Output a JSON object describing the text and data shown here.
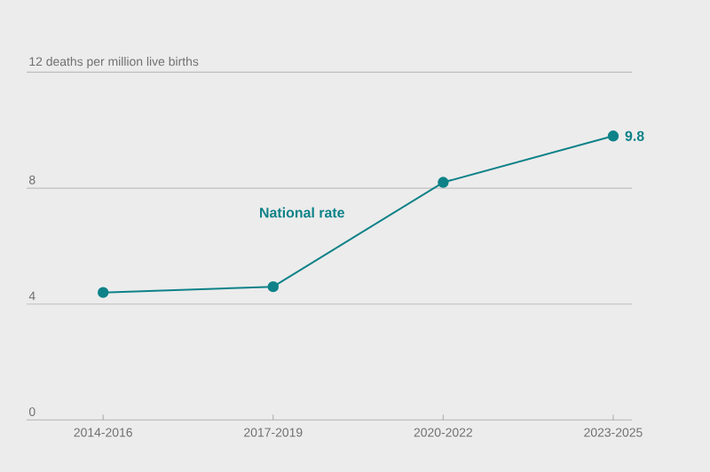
{
  "chart_data": {
    "type": "line",
    "categories": [
      "2014-2016",
      "2017-2019",
      "2020-2022",
      "2023-2025"
    ],
    "series": [
      {
        "name": "National rate",
        "color": "#0e8288",
        "values": [
          4.4,
          4.6,
          8.2,
          9.8
        ],
        "value_labels": [
          null,
          null,
          null,
          "9.8"
        ]
      }
    ],
    "ylim": [
      0,
      12
    ],
    "yticks": [
      0,
      4,
      8,
      {
        "value": 12,
        "label": "12 deaths per million live births"
      }
    ],
    "grid": "y",
    "marker": "circle"
  }
}
